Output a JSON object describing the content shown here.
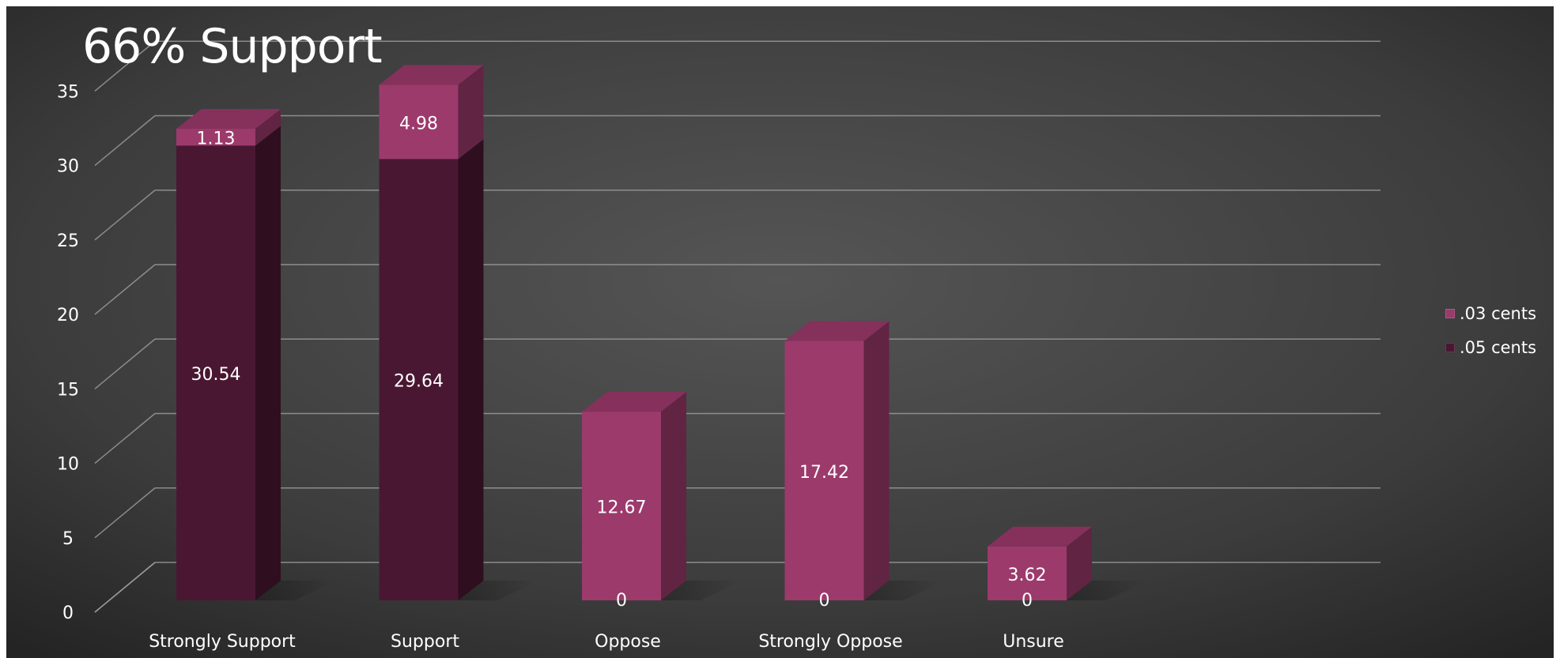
{
  "chart_data": {
    "type": "bar",
    "stacked": true,
    "three_d": true,
    "title": "66% Support",
    "categories": [
      "Strongly Support",
      "Support",
      "Oppose",
      "Strongly Oppose",
      "Unsure"
    ],
    "series": [
      {
        "name": ".05 cents",
        "values": [
          30.54,
          29.64,
          0,
          0,
          0
        ],
        "labels": [
          "30.54",
          "29.64",
          "0",
          "0",
          "0"
        ]
      },
      {
        "name": ".03 cents",
        "values": [
          1.13,
          4.98,
          12.67,
          17.42,
          3.62
        ],
        "labels": [
          "1.13",
          "4.98",
          "12.67",
          "17.42",
          "3.62"
        ]
      }
    ],
    "ylim": [
      0,
      35
    ],
    "yticks": [
      0,
      5,
      10,
      15,
      20,
      25,
      30,
      35
    ],
    "xlabel": "",
    "ylabel": "",
    "grid": true,
    "legend_position": "right",
    "colors": {
      "background": "#3a3a3a",
      ".05 cents": "#4a1732",
      ".03 cents": "#9c3a6c",
      "text": "#ffffff",
      "gridline": "#9a9a9a"
    }
  }
}
